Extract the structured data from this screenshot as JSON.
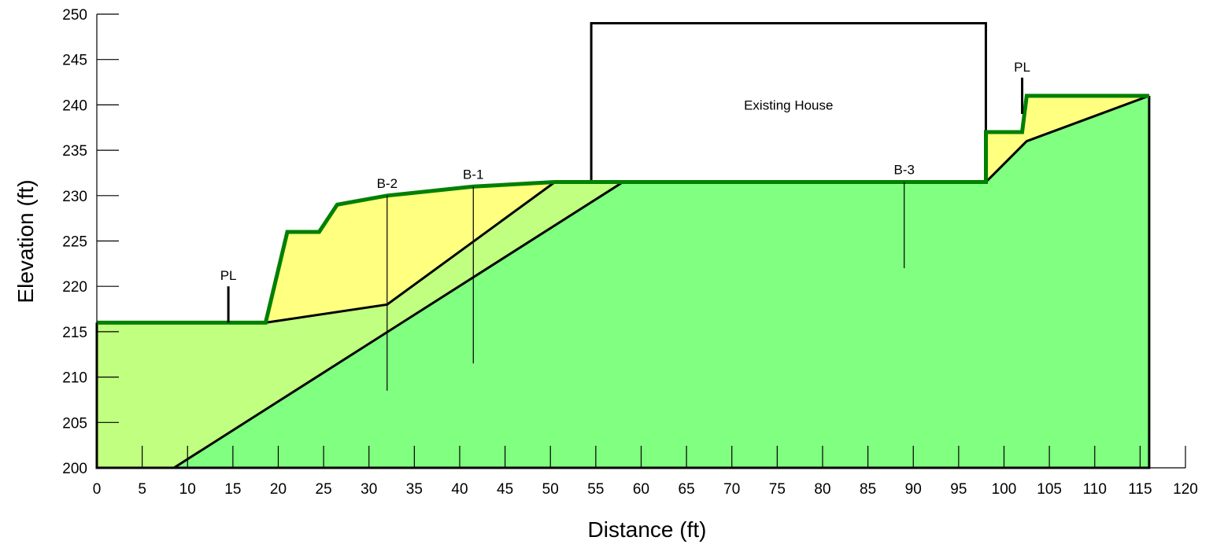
{
  "colors": {
    "fill_lower": "#80ff80",
    "fill_middle": "#c0ff80",
    "fill_upper": "#ffff80",
    "ground_line": "#008000",
    "boundary": "#000000"
  },
  "chart_data": {
    "type": "cross-section",
    "xlabel": "Distance (ft)",
    "ylabel": "Elevation (ft)",
    "xlim": [
      0,
      120
    ],
    "ylim": [
      200,
      250
    ],
    "x_ticks": [
      0,
      5,
      10,
      15,
      20,
      25,
      30,
      35,
      40,
      45,
      50,
      55,
      60,
      65,
      70,
      75,
      80,
      85,
      90,
      95,
      100,
      105,
      110,
      115,
      120
    ],
    "y_ticks": [
      200,
      205,
      210,
      215,
      220,
      225,
      230,
      235,
      240,
      245,
      250
    ],
    "ground_surface": [
      [
        0,
        216
      ],
      [
        18.6,
        216
      ],
      [
        21,
        226
      ],
      [
        24.5,
        226
      ],
      [
        26.5,
        229
      ],
      [
        32,
        230
      ],
      [
        41.5,
        231
      ],
      [
        50.5,
        231.5
      ],
      [
        98,
        231.5
      ],
      [
        98,
        237
      ],
      [
        102,
        237
      ],
      [
        102.5,
        241
      ],
      [
        116,
        241
      ]
    ],
    "lower_boundary": [
      [
        8.5,
        200
      ],
      [
        58,
        231.5
      ]
    ],
    "upper_boundary_left": [
      [
        18.6,
        216
      ],
      [
        32,
        218
      ],
      [
        50.5,
        231.5
      ]
    ],
    "upper_boundary_right": [
      [
        98,
        231.5
      ],
      [
        102.5,
        236
      ],
      [
        116,
        241
      ]
    ],
    "section_extent": [
      [
        0,
        200
      ],
      [
        116,
        241
      ]
    ],
    "borings": [
      {
        "label": "B-2",
        "x": 32,
        "top": 230,
        "bottom": 208.5
      },
      {
        "label": "B-1",
        "x": 41.5,
        "top": 231,
        "bottom": 211.5
      },
      {
        "label": "B-3",
        "x": 89,
        "top": 231.5,
        "bottom": 222
      }
    ],
    "property_lines": [
      {
        "label": "PL",
        "x": 14.5,
        "base": 216,
        "top": 220
      },
      {
        "label": "PL",
        "x": 102,
        "base": 239,
        "top": 243
      }
    ],
    "structure": {
      "label": "Existing House",
      "x1": 54.5,
      "x2": 98,
      "y1": 231.5,
      "y2": 249
    }
  }
}
